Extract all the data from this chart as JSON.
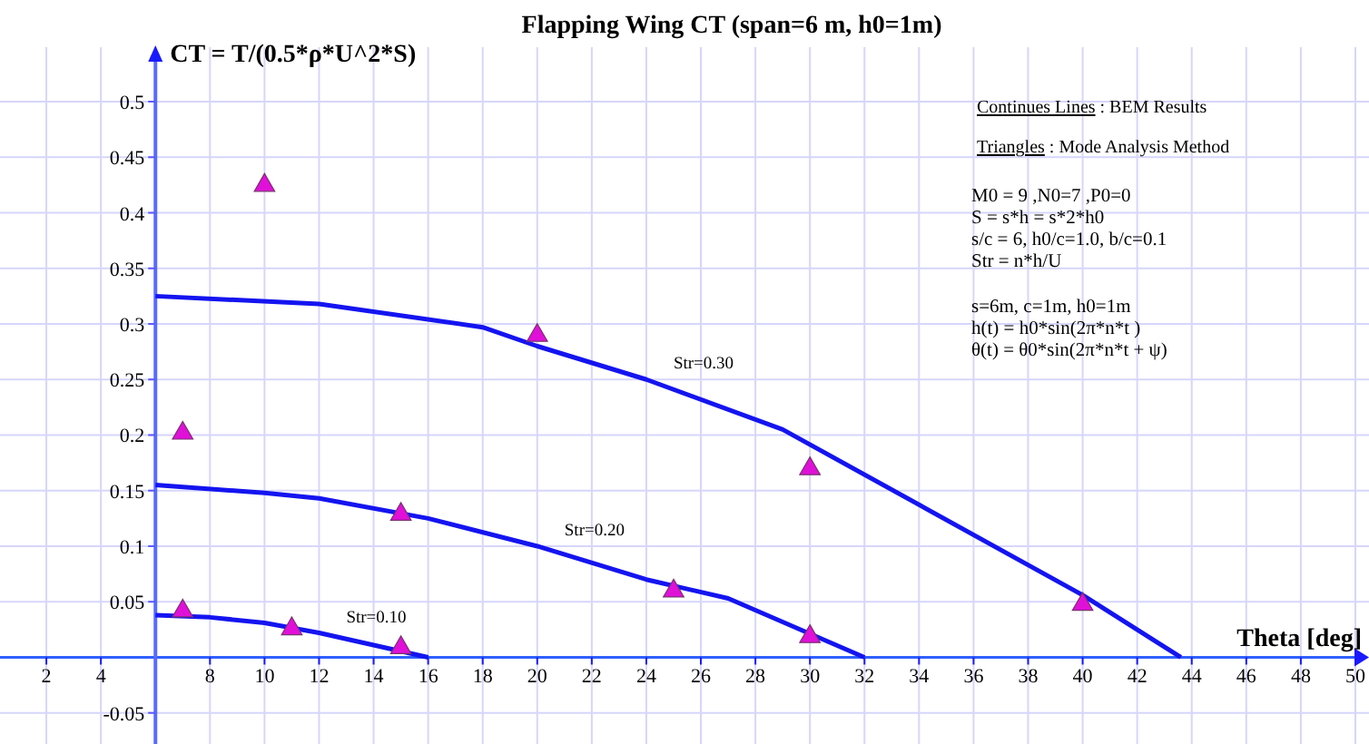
{
  "chart_data": {
    "type": "line",
    "title": "Flapping Wing CT (span=6 m, h0=1m)",
    "xlabel": "Theta [deg]",
    "ylabel": "CT = T/(0.5*ρ*U^2*S)",
    "xlim": [
      0.3,
      50.5
    ],
    "ylim": [
      -0.078,
      0.549
    ],
    "xticks": [
      2,
      4,
      8,
      10,
      12,
      14,
      16,
      18,
      20,
      22,
      24,
      26,
      28,
      30,
      32,
      34,
      36,
      38,
      40,
      42,
      44,
      46,
      48,
      50
    ],
    "yticks": [
      -0.05,
      0.05,
      0.1,
      0.15,
      0.2,
      0.25,
      0.3,
      0.35,
      0.4,
      0.45,
      0.5
    ],
    "grid": true,
    "line_style": "solid",
    "series": [
      {
        "name": "Str=0.30",
        "color": "#1414f0",
        "x": [
          6,
          12,
          18,
          20,
          24,
          29,
          40,
          43.6
        ],
        "values": [
          0.325,
          0.318,
          0.297,
          0.28,
          0.25,
          0.205,
          0.056,
          0
        ]
      },
      {
        "name": "Str=0.20",
        "color": "#1414f0",
        "x": [
          6,
          10,
          12,
          16,
          20,
          24,
          27,
          32
        ],
        "values": [
          0.155,
          0.148,
          0.143,
          0.125,
          0.1,
          0.07,
          0.053,
          0
        ]
      },
      {
        "name": "Str=0.10",
        "color": "#1414f0",
        "x": [
          6,
          8,
          10,
          12,
          16
        ],
        "values": [
          0.038,
          0.036,
          0.031,
          0.022,
          0
        ]
      },
      {
        "type": "scatter",
        "marker": "triangle",
        "color": "#e010d8",
        "x": [
          7,
          10,
          20,
          15,
          25,
          30,
          30,
          40,
          7,
          11,
          15
        ],
        "values": [
          0.2,
          0.423,
          0.288,
          0.127,
          0.058,
          0.168,
          0.017,
          0.046,
          0.04,
          0.024,
          0.007
        ]
      }
    ],
    "annotations": [
      "Continues Lines : BEM Results",
      "Triangles : Mode Analysis Method",
      "M0 = 9 ,N0=7 ,P0=0",
      "S = s*h = s*2*h0",
      "s/c = 6,   h0/c=1.0,  b/c=0.1",
      "Str = n*h/U",
      "s=6m,  c=1m,  h0=1m",
      "h(t) = h0*sin(2π*n*t )",
      "θ(t) = θ0*sin(2π*n*t + ψ)"
    ]
  }
}
